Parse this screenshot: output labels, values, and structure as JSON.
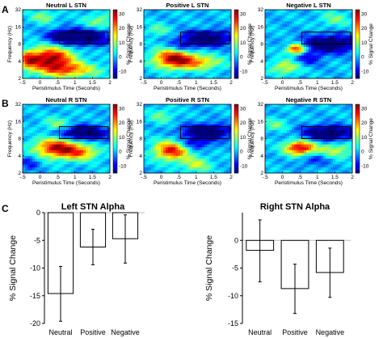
{
  "panel_letters": [
    "A",
    "B",
    "C"
  ],
  "alpha_symbol": "α",
  "colors": {
    "colormap": [
      "#00007f",
      "#0000ff",
      "#007fff",
      "#00ffff",
      "#7fff7f",
      "#ffff00",
      "#ff7f00",
      "#ff0000",
      "#7f0000"
    ],
    "bar_fill": "#ffffff",
    "bar_edge": "#000000",
    "zero_line": "#bbbbbb"
  },
  "chart_data": [
    {
      "type": "heatmap",
      "title": "Neutral L STN",
      "xlabel": "Peristimulus Time (Seconds)",
      "ylabel": "Frequency (Hz)",
      "colorbar_label": "% Signal Change",
      "xticks": [
        "-.5",
        "0",
        ".5",
        "1",
        "1.5",
        "2"
      ],
      "yticks": [
        "32",
        "16",
        "8",
        "4",
        "2"
      ],
      "cbar_ticks": [
        "30",
        "20",
        "10",
        "0",
        "-10"
      ],
      "xlim": [
        -0.5,
        2
      ],
      "ylim_hz": [
        2,
        32
      ],
      "clim": [
        -15,
        33
      ],
      "alpha_box": {
        "t": [
          0.55,
          1.95
        ],
        "hz": [
          8,
          13
        ]
      },
      "blobs": [
        {
          "t": 0.3,
          "hz": 4.5,
          "st": 0.45,
          "sf": 0.45,
          "a": 32
        },
        {
          "t": -0.35,
          "hz": 4.2,
          "st": 0.2,
          "sf": 0.35,
          "a": 18
        },
        {
          "t": 0.8,
          "hz": 2.8,
          "st": 0.6,
          "sf": 0.3,
          "a": 20
        },
        {
          "t": 1.25,
          "hz": 10.5,
          "st": 0.5,
          "sf": 0.32,
          "a": -22
        },
        {
          "t": 0.6,
          "hz": 11.0,
          "st": 0.3,
          "sf": 0.25,
          "a": -12
        },
        {
          "t": 1.7,
          "hz": 20.0,
          "st": 0.3,
          "sf": 0.3,
          "a": 10
        },
        {
          "t": 0.1,
          "hz": 24.0,
          "st": 0.25,
          "sf": 0.25,
          "a": 10
        }
      ]
    },
    {
      "type": "heatmap",
      "title": "Positive L STN",
      "xlabel": "Peristimulus Time (Seconds)",
      "ylabel": "Frequency (Hz)",
      "colorbar_label": "% Signal Change",
      "xticks": [
        "-.5",
        "0",
        ".5",
        "1",
        "1.5",
        "2"
      ],
      "yticks": [
        "32",
        "16",
        "8",
        "4",
        "2"
      ],
      "cbar_ticks": [
        "30",
        "20",
        "10",
        "0",
        "-10"
      ],
      "xlim": [
        -0.5,
        2
      ],
      "ylim_hz": [
        2,
        32
      ],
      "clim": [
        -15,
        33
      ],
      "alpha_box": {
        "t": [
          0.55,
          1.95
        ],
        "hz": [
          8,
          13
        ]
      },
      "blobs": [
        {
          "t": 0.35,
          "hz": 4.5,
          "st": 0.4,
          "sf": 0.4,
          "a": 30
        },
        {
          "t": 1.1,
          "hz": 3.8,
          "st": 0.45,
          "sf": 0.3,
          "a": 16
        },
        {
          "t": 1.3,
          "hz": 10.0,
          "st": 0.5,
          "sf": 0.3,
          "a": -22
        },
        {
          "t": 0.6,
          "hz": 7.0,
          "st": 0.3,
          "sf": 0.25,
          "a": -10
        },
        {
          "t": -0.1,
          "hz": 14.0,
          "st": 0.25,
          "sf": 0.25,
          "a": 8
        }
      ]
    },
    {
      "type": "heatmap",
      "title": "Negative L STN",
      "xlabel": "Peristimulus Time (Seconds)",
      "ylabel": "Frequency (Hz)",
      "colorbar_label": "% Signal Change",
      "xticks": [
        "-.5",
        "0",
        ".5",
        "1",
        "1.5",
        "2"
      ],
      "yticks": [
        "32",
        "16",
        "8",
        "4",
        "2"
      ],
      "cbar_ticks": [
        "30",
        "20",
        "10",
        "0",
        "-10"
      ],
      "xlim": [
        -0.5,
        2
      ],
      "ylim_hz": [
        2,
        32
      ],
      "clim": [
        -15,
        33
      ],
      "alpha_box": {
        "t": [
          0.55,
          1.95
        ],
        "hz": [
          8,
          13
        ]
      },
      "blobs": [
        {
          "t": 0.4,
          "hz": 6.5,
          "st": 0.2,
          "sf": 0.22,
          "a": 30
        },
        {
          "t": 0.1,
          "hz": 3.2,
          "st": 0.3,
          "sf": 0.3,
          "a": 14
        },
        {
          "t": 1.35,
          "hz": 8.0,
          "st": 0.55,
          "sf": 0.35,
          "a": -22
        },
        {
          "t": 0.7,
          "hz": 4.5,
          "st": 0.3,
          "sf": 0.3,
          "a": -10
        },
        {
          "t": 1.5,
          "hz": 22.0,
          "st": 0.3,
          "sf": 0.3,
          "a": 8
        }
      ]
    },
    {
      "type": "heatmap",
      "title": "Neutral R STN",
      "xlabel": "Peristimulus Time (Seconds)",
      "ylabel": "Frequency (Hz)",
      "colorbar_label": "% Signal Change",
      "xticks": [
        "-.5",
        "0",
        ".5",
        "1",
        "1.5",
        "2"
      ],
      "yticks": [
        "32",
        "16",
        "8",
        "4",
        "2"
      ],
      "cbar_ticks": [
        "30",
        "20",
        "10",
        "0",
        "-10"
      ],
      "xlim": [
        -0.5,
        2
      ],
      "ylim_hz": [
        2,
        32
      ],
      "clim": [
        -15,
        33
      ],
      "alpha_box": {
        "t": [
          0.55,
          1.95
        ],
        "hz": [
          8,
          13
        ]
      },
      "blobs": [
        {
          "t": 0.5,
          "hz": 5.5,
          "st": 0.45,
          "sf": 0.4,
          "a": 30
        },
        {
          "t": 1.2,
          "hz": 4.5,
          "st": 0.35,
          "sf": 0.3,
          "a": 16
        },
        {
          "t": 1.2,
          "hz": 10.0,
          "st": 0.5,
          "sf": 0.3,
          "a": -22
        },
        {
          "t": 0.5,
          "hz": 14.0,
          "st": 0.3,
          "sf": 0.3,
          "a": 10
        },
        {
          "t": -0.3,
          "hz": 3.0,
          "st": 0.2,
          "sf": 0.3,
          "a": -8
        }
      ]
    },
    {
      "type": "heatmap",
      "title": "Positive R STN",
      "xlabel": "Peristimulus Time (Seconds)",
      "ylabel": "Frequency (Hz)",
      "colorbar_label": "% Signal Change",
      "xticks": [
        "-.5",
        "0",
        ".5",
        "1",
        "1.5",
        "2"
      ],
      "yticks": [
        "32",
        "16",
        "8",
        "4",
        "2"
      ],
      "cbar_ticks": [
        "30",
        "20",
        "10",
        "0",
        "-10"
      ],
      "xlim": [
        -0.5,
        2
      ],
      "ylim_hz": [
        2,
        32
      ],
      "clim": [
        -15,
        33
      ],
      "alpha_box": {
        "t": [
          0.55,
          1.95
        ],
        "hz": [
          8,
          13
        ]
      },
      "blobs": [
        {
          "t": 0.3,
          "hz": 5.0,
          "st": 0.35,
          "sf": 0.4,
          "a": 28
        },
        {
          "t": 1.3,
          "hz": 10.5,
          "st": 0.5,
          "sf": 0.3,
          "a": -22
        },
        {
          "t": 0.9,
          "hz": 6.5,
          "st": 0.35,
          "sf": 0.25,
          "a": -12
        },
        {
          "t": 1.0,
          "hz": 2.8,
          "st": 0.3,
          "sf": 0.3,
          "a": 12
        },
        {
          "t": 0.0,
          "hz": 20.0,
          "st": 0.25,
          "sf": 0.3,
          "a": 8
        }
      ]
    },
    {
      "type": "heatmap",
      "title": "Negative R STN",
      "xlabel": "Peristimulus Time (Seconds)",
      "ylabel": "Frequency (Hz)",
      "colorbar_label": "% Signal Change",
      "xticks": [
        "-.5",
        "0",
        ".5",
        "1",
        "1.5",
        "2"
      ],
      "yticks": [
        "32",
        "16",
        "8",
        "4",
        "2"
      ],
      "cbar_ticks": [
        "30",
        "20",
        "10",
        "0",
        "-10"
      ],
      "xlim": [
        -0.5,
        2
      ],
      "ylim_hz": [
        2,
        32
      ],
      "clim": [
        -15,
        33
      ],
      "alpha_box": {
        "t": [
          0.55,
          1.95
        ],
        "hz": [
          8,
          13
        ]
      },
      "blobs": [
        {
          "t": 0.5,
          "hz": 5.5,
          "st": 0.3,
          "sf": 0.3,
          "a": 30
        },
        {
          "t": 1.3,
          "hz": 10.0,
          "st": 0.5,
          "sf": 0.3,
          "a": -22
        },
        {
          "t": 1.5,
          "hz": 5.0,
          "st": 0.4,
          "sf": 0.3,
          "a": 12
        },
        {
          "t": 0.9,
          "hz": 3.5,
          "st": 0.3,
          "sf": 0.3,
          "a": -8
        },
        {
          "t": -0.2,
          "hz": 14.0,
          "st": 0.25,
          "sf": 0.25,
          "a": 8
        }
      ]
    },
    {
      "type": "bar",
      "title": "Left STN Alpha",
      "ylabel": "% Signal Change",
      "categories": [
        "Neutral",
        "Positive",
        "Negative"
      ],
      "values": [
        -14.6,
        -6.2,
        -4.7
      ],
      "error_low": [
        -19.6,
        -9.4,
        -9.1
      ],
      "error_high": [
        -9.7,
        -3.0,
        -0.4
      ],
      "ylim": [
        -20,
        0
      ],
      "yticks": [
        "0",
        "-5",
        "-10",
        "-15",
        "-20"
      ]
    },
    {
      "type": "bar",
      "title": "Right STN Alpha",
      "ylabel": "% Signal Change",
      "categories": [
        "Neutral",
        "Positive",
        "Negative"
      ],
      "values": [
        -1.8,
        -8.7,
        -5.8
      ],
      "error_low": [
        -7.5,
        -13.2,
        -10.3
      ],
      "error_high": [
        3.7,
        -4.3,
        -1.4
      ],
      "ylim": [
        -15,
        5
      ],
      "yticks": [
        "0",
        "-5",
        "-10",
        "-15"
      ]
    }
  ]
}
